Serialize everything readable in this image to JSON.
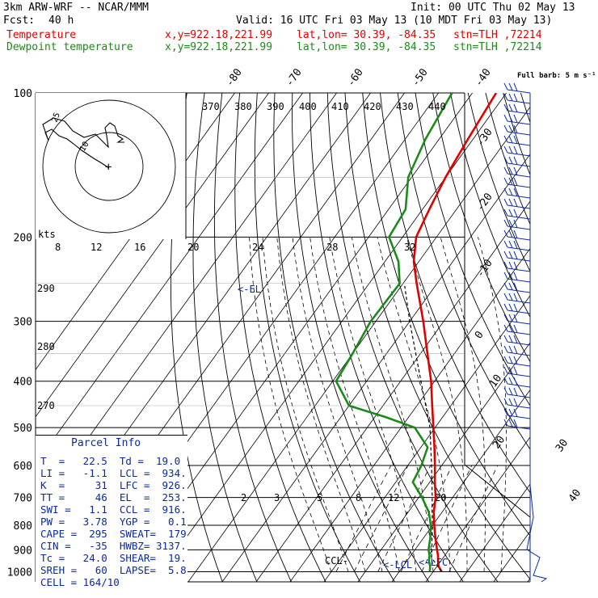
{
  "header": {
    "model": "3km ARW-WRF -- NCAR/MMM",
    "init": "Init: 00 UTC Thu 02 May 13",
    "fcst_label": "Fcst:",
    "fcst_value": "40 h",
    "valid": "Valid: 16 UTC Fri 03 May 13 (10 MDT Fri 03 May 13)",
    "temp_label": "Temperature",
    "dew_label": "Dewpoint temperature",
    "xy": "x,y=922.18,221.99",
    "latlon": "lat,lon= 30.39, -84.35",
    "stn": "stn=TLH ,72214"
  },
  "colors": {
    "temperature": "#e00000",
    "dewpoint": "#1a8a1a",
    "isotherm": "#000000",
    "parcel_text": "#0b2a9a",
    "wind_barb": "#0b2a9a"
  },
  "chart_data": {
    "type": "line",
    "subtype": "skew-T log-P sounding",
    "x_axis": "temperature (C), skewed",
    "y_axis": "pressure (hPa), log scale",
    "pressure_labels": [
      100,
      200,
      300,
      400,
      500,
      600,
      700,
      800,
      900,
      1000
    ],
    "isotherm_labels_top": [
      "-80",
      "-70",
      "-60",
      "-50",
      "-40"
    ],
    "isotherm_labels_right": [
      "-30",
      "-20",
      "-10",
      "0",
      "10",
      "20",
      "30",
      "40"
    ],
    "theta_labels": [
      "370",
      "380",
      "390",
      "400",
      "410",
      "420",
      "430",
      "440"
    ],
    "theta_side_labels": [
      "290",
      "280",
      "270"
    ],
    "mixing_ratio_labels": [
      "2",
      "3",
      "5",
      "8",
      "12",
      "20"
    ],
    "hodo_speed_labels": [
      "8",
      "12",
      "16",
      "20",
      "24",
      "28",
      "32"
    ],
    "hodo_speed_unit": "kts",
    "hodo_ring_labels": [
      "25",
      "10"
    ],
    "barb_legend": "Full barb: 5 m s⁻¹",
    "series": [
      {
        "name": "Temperature",
        "color": "#e00000",
        "points": [
          [
            1000,
            22.5
          ],
          [
            975,
            20.5
          ],
          [
            950,
            19.2
          ],
          [
            925,
            18.0
          ],
          [
            900,
            16.5
          ],
          [
            850,
            13.5
          ],
          [
            800,
            10.5
          ],
          [
            750,
            7.5
          ],
          [
            700,
            5.0
          ],
          [
            650,
            1.5
          ],
          [
            600,
            -2.0
          ],
          [
            550,
            -6.0
          ],
          [
            500,
            -10.5
          ],
          [
            450,
            -15.5
          ],
          [
            400,
            -21.0
          ],
          [
            350,
            -28.0
          ],
          [
            300,
            -36.0
          ],
          [
            250,
            -46.0
          ],
          [
            225,
            -51.5
          ],
          [
            200,
            -56.0
          ],
          [
            175,
            -58.0
          ],
          [
            150,
            -60.0
          ],
          [
            125,
            -61.5
          ],
          [
            100,
            -63.0
          ]
        ]
      },
      {
        "name": "Dewpoint temperature",
        "color": "#1a8a1a",
        "points": [
          [
            1000,
            19.0
          ],
          [
            975,
            18.0
          ],
          [
            950,
            16.5
          ],
          [
            925,
            15.5
          ],
          [
            900,
            14.0
          ],
          [
            850,
            12.0
          ],
          [
            800,
            9.5
          ],
          [
            750,
            6.0
          ],
          [
            700,
            1.0
          ],
          [
            650,
            -5.0
          ],
          [
            600,
            -6.0
          ],
          [
            550,
            -8.0
          ],
          [
            500,
            -16.0
          ],
          [
            475,
            -27.0
          ],
          [
            450,
            -40.0
          ],
          [
            400,
            -49.0
          ],
          [
            350,
            -50.0
          ],
          [
            300,
            -51.5
          ],
          [
            250,
            -51.0
          ],
          [
            225,
            -56.0
          ],
          [
            200,
            -64.0
          ],
          [
            175,
            -65.0
          ],
          [
            150,
            -71.0
          ],
          [
            125,
            -74.0
          ],
          [
            100,
            -76.0
          ]
        ]
      },
      {
        "name": "Parcel",
        "color": "#000000",
        "style": "dashed",
        "points": [
          [
            1000,
            22.5
          ],
          [
            934,
            16.5
          ],
          [
            900,
            15.0
          ],
          [
            850,
            12.5
          ],
          [
            800,
            10.0
          ],
          [
            750,
            7.0
          ],
          [
            700,
            4.0
          ],
          [
            600,
            -3.0
          ],
          [
            500,
            -11.5
          ],
          [
            400,
            -24.0
          ],
          [
            300,
            -40.0
          ],
          [
            253,
            -49.0
          ]
        ]
      }
    ],
    "level_markers": [
      "CCL",
      "LCL",
      "LFC",
      "EL"
    ],
    "grid": true
  },
  "parcel_info": {
    "title": "Parcel Info",
    "rows": [
      "T  =   22.5  Td =  19.0",
      "LI =   -1.1  LCL =  934.",
      "K  =     31  LFC =  926.",
      "TT =     46  EL  =  253.",
      "SWI =   1.1  CCL =  916.",
      "PW =   3.78  YGP =   0.1",
      "CAPE =  295  SWEAT=  179",
      "CIN =   -35  HWBZ= 3137.",
      "Tc =   24.0  SHEAR=  19.",
      "SREH =   60  LAPSE=  5.8",
      "CELL = 164/10"
    ]
  }
}
